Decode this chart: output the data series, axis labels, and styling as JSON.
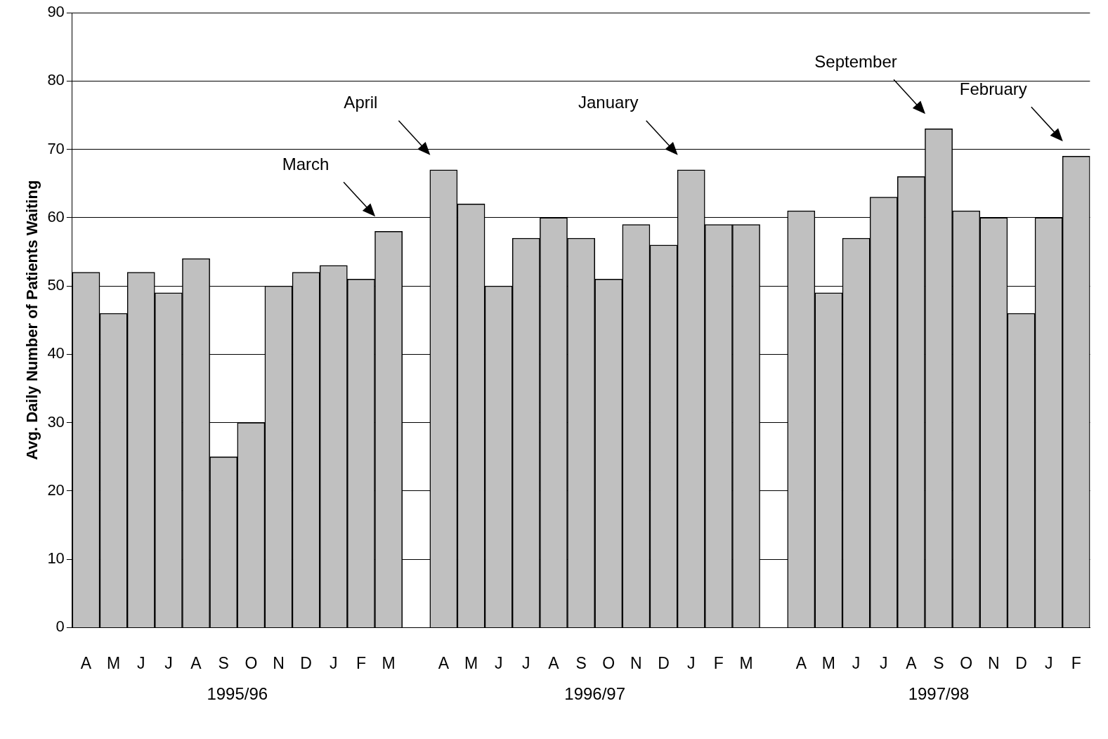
{
  "chart_data": {
    "type": "bar",
    "ylabel": "Avg. Daily Number of Patients Waiting",
    "categories": [
      "A",
      "M",
      "J",
      "J",
      "A",
      "S",
      "O",
      "N",
      "D",
      "J",
      "F",
      "M",
      null,
      "A",
      "M",
      "J",
      "J",
      "A",
      "S",
      "O",
      "N",
      "D",
      "J",
      "F",
      "M",
      null,
      "A",
      "M",
      "J",
      "J",
      "A",
      "S",
      "O",
      "N",
      "D",
      "J",
      "F"
    ],
    "values": [
      52,
      46,
      52,
      49,
      54,
      25,
      30,
      50,
      52,
      53,
      51,
      58,
      null,
      67,
      62,
      50,
      57,
      60,
      57,
      51,
      59,
      56,
      67,
      59,
      59,
      null,
      61,
      49,
      57,
      63,
      66,
      73,
      61,
      60,
      46,
      60,
      69
    ],
    "color": "#c0c0c0",
    "ylim": [
      0,
      90
    ],
    "yticks": [
      0,
      10,
      20,
      30,
      40,
      50,
      60,
      70,
      80,
      90
    ],
    "grid": "y",
    "annotations": [
      "March",
      "April",
      "January",
      "September",
      "February",
      "1995/96",
      "1996/97",
      "1997/98"
    ]
  }
}
